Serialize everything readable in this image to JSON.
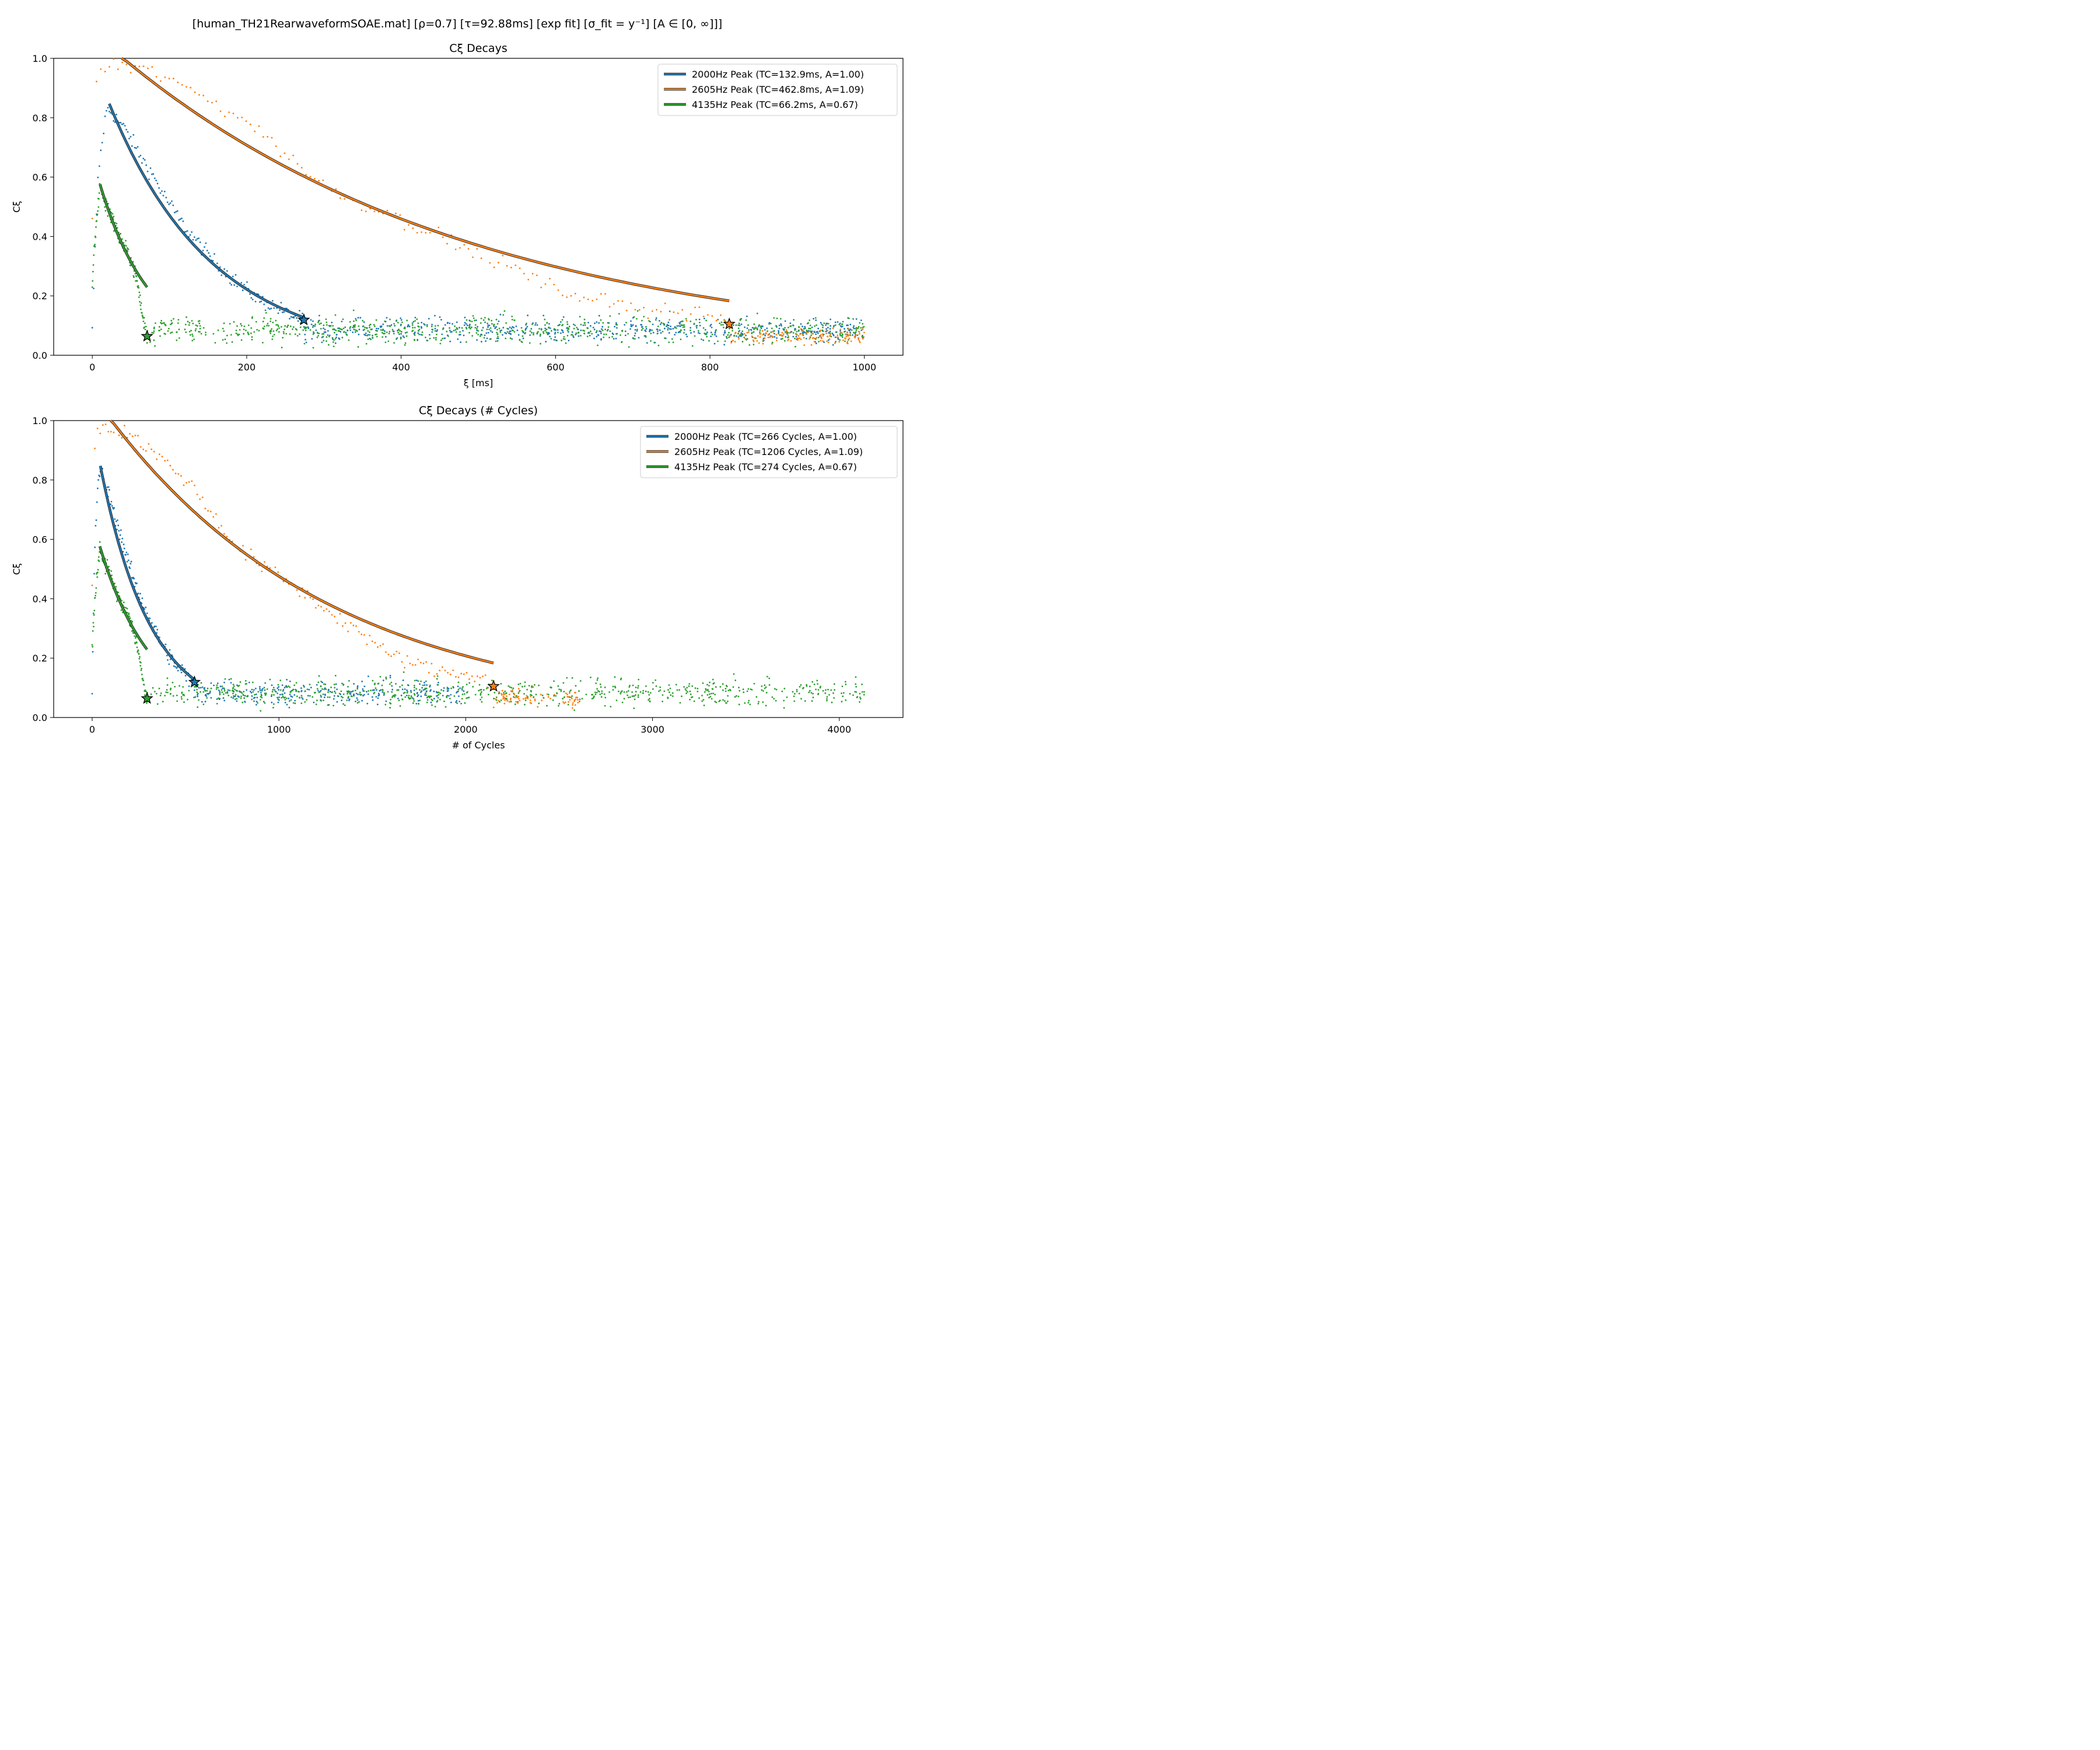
{
  "suptitle": "[human_TH21RearwaveformSOAE.mat]   [ρ=0.7]   [τ=92.88ms]   [exp fit]   [σ_fit = y⁻¹]   [A ∈ [0, ∞]]]",
  "colors": {
    "2000": "#1f77b4",
    "2605": "#ff7f0e",
    "4135": "#2ca02c"
  },
  "chart_data": [
    {
      "type": "scatter",
      "title": "Cξ Decays",
      "xlabel": "ξ [ms]",
      "ylabel": "Cξ",
      "xlim": [
        -50,
        1050
      ],
      "ylim": [
        0,
        1
      ],
      "xticks": [
        0,
        200,
        400,
        600,
        800,
        1000
      ],
      "xtick_labels": [
        "0",
        "200",
        "400",
        "600",
        "800",
        "1000"
      ],
      "yticks": [
        0,
        0.2,
        0.4,
        0.6,
        0.8,
        1.0
      ],
      "ytick_labels": [
        "0.0",
        "0.2",
        "0.4",
        "0.6",
        "0.8",
        "1.0"
      ],
      "legend_position": "top-right",
      "series": [
        {
          "key": "2000",
          "name": "2000Hz Peak (TC=132.9ms, A=1.00)",
          "A": 1.0,
          "tc": 132.9,
          "fit_range": [
            22,
            274
          ],
          "star": [
            274,
            0.119
          ],
          "samples": [
            [
              0,
              0.08
            ],
            [
              5,
              0.45
            ],
            [
              8,
              0.62
            ],
            [
              12,
              0.7
            ],
            [
              16,
              0.79
            ],
            [
              20,
              0.83
            ],
            [
              25,
              0.82
            ],
            [
              30,
              0.8
            ],
            [
              40,
              0.77
            ],
            [
              50,
              0.73
            ],
            [
              60,
              0.68
            ],
            [
              70,
              0.64
            ],
            [
              80,
              0.6
            ],
            [
              90,
              0.55
            ],
            [
              100,
              0.51
            ],
            [
              110,
              0.47
            ],
            [
              120,
              0.43
            ],
            [
              130,
              0.4
            ],
            [
              140,
              0.37
            ],
            [
              150,
              0.34
            ],
            [
              160,
              0.31
            ],
            [
              170,
              0.29
            ],
            [
              180,
              0.26
            ],
            [
              190,
              0.24
            ],
            [
              200,
              0.22
            ],
            [
              220,
              0.18
            ],
            [
              240,
              0.16
            ],
            [
              260,
              0.13
            ],
            [
              274,
              0.12
            ]
          ],
          "noise": {
            "from": 274,
            "to": 1000,
            "mean": 0.085,
            "spread": 0.065
          }
        },
        {
          "key": "2605",
          "name": "2605Hz Peak (TC=462.8ms, A=1.09)",
          "A": 1.09,
          "tc": 462.8,
          "fit_range": [
            38,
            825
          ],
          "star": [
            825,
            0.105
          ],
          "samples": [
            [
              0,
              0.46
            ],
            [
              3,
              0.85
            ],
            [
              6,
              0.94
            ],
            [
              10,
              0.96
            ],
            [
              20,
              0.975
            ],
            [
              30,
              0.978
            ],
            [
              40,
              0.975
            ],
            [
              60,
              0.965
            ],
            [
              80,
              0.95
            ],
            [
              100,
              0.93
            ],
            [
              120,
              0.9
            ],
            [
              150,
              0.86
            ],
            [
              200,
              0.79
            ],
            [
              250,
              0.68
            ],
            [
              300,
              0.57
            ],
            [
              350,
              0.51
            ],
            [
              400,
              0.46
            ],
            [
              450,
              0.4
            ],
            [
              500,
              0.34
            ],
            [
              550,
              0.29
            ],
            [
              600,
              0.22
            ],
            [
              650,
              0.19
            ],
            [
              700,
              0.16
            ],
            [
              750,
              0.15
            ],
            [
              800,
              0.14
            ],
            [
              825,
              0.105
            ]
          ],
          "noise": {
            "from": 825,
            "to": 1000,
            "mean": 0.065,
            "spread": 0.05
          }
        },
        {
          "key": "4135",
          "name": "4135Hz Peak (TC=66.2ms, A=0.67)",
          "A": 0.67,
          "tc": 66.2,
          "fit_range": [
            10,
            71
          ],
          "star": [
            71,
            0.064
          ],
          "samples": [
            [
              0,
              0.23
            ],
            [
              3,
              0.38
            ],
            [
              6,
              0.46
            ],
            [
              10,
              0.58
            ],
            [
              15,
              0.52
            ],
            [
              20,
              0.5
            ],
            [
              25,
              0.47
            ],
            [
              30,
              0.43
            ],
            [
              35,
              0.4
            ],
            [
              40,
              0.37
            ],
            [
              45,
              0.35
            ],
            [
              50,
              0.32
            ],
            [
              55,
              0.28
            ],
            [
              60,
              0.22
            ],
            [
              65,
              0.13
            ],
            [
              71,
              0.064
            ]
          ],
          "noise": {
            "from": 71,
            "to": 1000,
            "mean": 0.085,
            "spread": 0.075
          }
        }
      ]
    },
    {
      "type": "scatter",
      "title": "Cξ Decays (# Cycles)",
      "xlabel": "# of Cycles",
      "ylabel": "Cξ",
      "xlim": [
        -206,
        4341
      ],
      "ylim": [
        0,
        1
      ],
      "xticks": [
        0,
        1000,
        2000,
        3000,
        4000
      ],
      "xtick_labels": [
        "0",
        "1000",
        "2000",
        "3000",
        "4000"
      ],
      "yticks": [
        0,
        0.2,
        0.4,
        0.6,
        0.8,
        1.0
      ],
      "ytick_labels": [
        "0.0",
        "0.2",
        "0.4",
        "0.6",
        "0.8",
        "1.0"
      ],
      "legend_position": "top-right",
      "series": [
        {
          "key": "2000",
          "name": "2000Hz Peak (TC=266 Cycles, A=1.00)",
          "A": 1.0,
          "tc": 266,
          "fit_range": [
            44,
            548
          ],
          "star": [
            548,
            0.119
          ],
          "samples": [
            [
              0,
              0.08
            ],
            [
              10,
              0.45
            ],
            [
              16,
              0.62
            ],
            [
              24,
              0.7
            ],
            [
              32,
              0.79
            ],
            [
              40,
              0.83
            ],
            [
              50,
              0.82
            ],
            [
              60,
              0.8
            ],
            [
              80,
              0.77
            ],
            [
              100,
              0.73
            ],
            [
              120,
              0.68
            ],
            [
              140,
              0.64
            ],
            [
              160,
              0.6
            ],
            [
              180,
              0.55
            ],
            [
              200,
              0.51
            ],
            [
              220,
              0.47
            ],
            [
              240,
              0.43
            ],
            [
              260,
              0.4
            ],
            [
              280,
              0.37
            ],
            [
              300,
              0.34
            ],
            [
              320,
              0.31
            ],
            [
              340,
              0.29
            ],
            [
              360,
              0.26
            ],
            [
              380,
              0.24
            ],
            [
              400,
              0.22
            ],
            [
              440,
              0.18
            ],
            [
              480,
              0.16
            ],
            [
              520,
              0.13
            ],
            [
              548,
              0.12
            ]
          ],
          "noise": {
            "from": 548,
            "to": 2000,
            "mean": 0.085,
            "spread": 0.065
          }
        },
        {
          "key": "2605",
          "name": "2605Hz Peak (TC=1206 Cycles, A=1.09)",
          "A": 1.09,
          "tc": 1206,
          "fit_range": [
            99,
            2149
          ],
          "star": [
            2149,
            0.105
          ],
          "samples": [
            [
              0,
              0.46
            ],
            [
              8,
              0.85
            ],
            [
              16,
              0.94
            ],
            [
              26,
              0.96
            ],
            [
              52,
              0.975
            ],
            [
              78,
              0.978
            ],
            [
              104,
              0.975
            ],
            [
              156,
              0.965
            ],
            [
              208,
              0.95
            ],
            [
              260,
              0.93
            ],
            [
              313,
              0.9
            ],
            [
              391,
              0.86
            ],
            [
              521,
              0.79
            ],
            [
              651,
              0.68
            ],
            [
              782,
              0.57
            ],
            [
              912,
              0.51
            ],
            [
              1042,
              0.46
            ],
            [
              1172,
              0.4
            ],
            [
              1303,
              0.34
            ],
            [
              1433,
              0.29
            ],
            [
              1563,
              0.22
            ],
            [
              1693,
              0.19
            ],
            [
              1824,
              0.16
            ],
            [
              1954,
              0.15
            ],
            [
              2084,
              0.14
            ],
            [
              2149,
              0.105
            ]
          ],
          "noise": {
            "from": 2149,
            "to": 2605,
            "mean": 0.065,
            "spread": 0.05
          }
        },
        {
          "key": "4135",
          "name": "4135Hz Peak (TC=274 Cycles, A=0.67)",
          "A": 0.67,
          "tc": 274,
          "fit_range": [
            41,
            294
          ],
          "star": [
            294,
            0.064
          ],
          "samples": [
            [
              0,
              0.23
            ],
            [
              12,
              0.38
            ],
            [
              25,
              0.46
            ],
            [
              41,
              0.58
            ],
            [
              62,
              0.52
            ],
            [
              83,
              0.5
            ],
            [
              103,
              0.47
            ],
            [
              124,
              0.43
            ],
            [
              145,
              0.4
            ],
            [
              165,
              0.37
            ],
            [
              186,
              0.35
            ],
            [
              207,
              0.32
            ],
            [
              227,
              0.28
            ],
            [
              248,
              0.22
            ],
            [
              269,
              0.13
            ],
            [
              294,
              0.064
            ]
          ],
          "noise": {
            "from": 294,
            "to": 4135,
            "mean": 0.085,
            "spread": 0.075
          }
        }
      ]
    }
  ]
}
